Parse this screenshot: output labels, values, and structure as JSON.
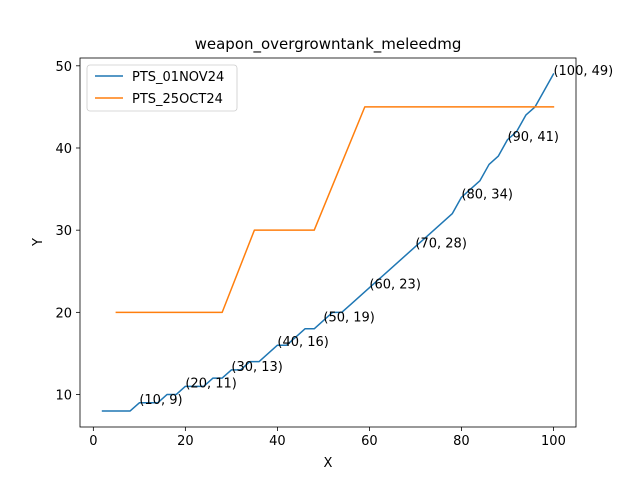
{
  "chart_data": {
    "type": "line",
    "title": "weapon_overgrowntank_meleedmg",
    "xlabel": "X",
    "ylabel": "Y",
    "xlim": [
      -2.9,
      104.9
    ],
    "ylim": [
      6.05,
      50.95
    ],
    "xticks": [
      0,
      20,
      40,
      60,
      80,
      100
    ],
    "yticks": [
      10,
      20,
      30,
      40,
      50
    ],
    "grid": false,
    "legend_position": "top-left",
    "series": [
      {
        "name": "PTS_01NOV24",
        "color": "#1f77b4",
        "x": [
          2,
          4,
          6,
          8,
          10,
          12,
          14,
          16,
          18,
          20,
          22,
          24,
          26,
          28,
          30,
          32,
          34,
          36,
          38,
          40,
          42,
          44,
          46,
          48,
          50,
          52,
          54,
          56,
          58,
          60,
          62,
          64,
          66,
          68,
          70,
          72,
          74,
          76,
          78,
          80,
          82,
          84,
          86,
          88,
          90,
          92,
          94,
          96,
          98,
          100
        ],
        "y": [
          8,
          8,
          8,
          8,
          9,
          9,
          9,
          10,
          10,
          11,
          11,
          11,
          12,
          12,
          13,
          13,
          14,
          14,
          15,
          16,
          16,
          17,
          18,
          18,
          19,
          20,
          20,
          21,
          22,
          23,
          24,
          25,
          26,
          27,
          28,
          29,
          30,
          31,
          32,
          34,
          35,
          36,
          38,
          39,
          41,
          42,
          44,
          45,
          47,
          49
        ]
      },
      {
        "name": "PTS_25OCT24",
        "color": "#ff7f0e",
        "x": [
          5,
          28,
          35,
          48,
          59,
          100
        ],
        "y": [
          20,
          20,
          30,
          30,
          45,
          45
        ]
      }
    ],
    "annotations": [
      {
        "text": "(10, 9)",
        "x": 10,
        "y": 9
      },
      {
        "text": "(20, 11)",
        "x": 20,
        "y": 11
      },
      {
        "text": "(30, 13)",
        "x": 30,
        "y": 13
      },
      {
        "text": "(40, 16)",
        "x": 40,
        "y": 16
      },
      {
        "text": "(50, 19)",
        "x": 50,
        "y": 19
      },
      {
        "text": "(60, 23)",
        "x": 60,
        "y": 23
      },
      {
        "text": "(70, 28)",
        "x": 70,
        "y": 28
      },
      {
        "text": "(80, 34)",
        "x": 80,
        "y": 34
      },
      {
        "text": "(90, 41)",
        "x": 90,
        "y": 41
      },
      {
        "text": "(100, 49)",
        "x": 100,
        "y": 49
      }
    ]
  }
}
